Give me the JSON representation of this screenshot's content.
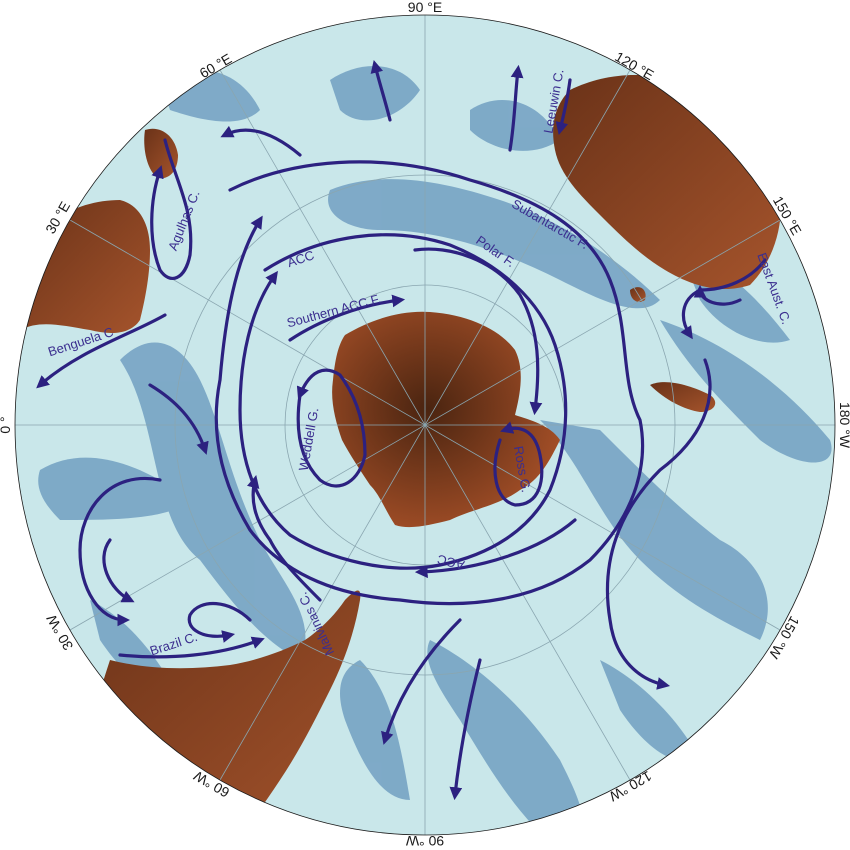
{
  "map": {
    "projection": "south-polar stereographic",
    "colors": {
      "ocean_deep": "#c9e7ea",
      "ocean_shallow": "#7ba7c6",
      "land_dark": "#5a2e16",
      "land_light": "#9b4a26",
      "current_arrow": "#2c2180",
      "grid": "#8aa6b0"
    },
    "longitude_labels": [
      {
        "id": "lon-90e",
        "text": "90 °E"
      },
      {
        "id": "lon-120e",
        "text": "120 °E"
      },
      {
        "id": "lon-150e",
        "text": "150 °E"
      },
      {
        "id": "lon-180",
        "text": "180 °W"
      },
      {
        "id": "lon-150w",
        "text": "150 °W"
      },
      {
        "id": "lon-120w",
        "text": "120 °W"
      },
      {
        "id": "lon-90w",
        "text": "90 °W"
      },
      {
        "id": "lon-60w",
        "text": "60 °W"
      },
      {
        "id": "lon-30w",
        "text": "30 °W"
      },
      {
        "id": "lon-0",
        "text": "0 °"
      },
      {
        "id": "lon-30e",
        "text": "30 °E"
      },
      {
        "id": "lon-60e",
        "text": "60 °E"
      }
    ],
    "current_labels": [
      {
        "id": "leeuwin",
        "text": "Leeuwin C."
      },
      {
        "id": "agulhas",
        "text": "Agulhas C."
      },
      {
        "id": "subantarctic",
        "text": "Subantarctic F."
      },
      {
        "id": "acc-north",
        "text": "ACC"
      },
      {
        "id": "polar-front",
        "text": "Polar F."
      },
      {
        "id": "southern-acc",
        "text": "Southern ACC F."
      },
      {
        "id": "east-aust",
        "text": "East Aust. C."
      },
      {
        "id": "benguela",
        "text": "Benguela C"
      },
      {
        "id": "weddell",
        "text": "Weddell G."
      },
      {
        "id": "ross",
        "text": "Ross G."
      },
      {
        "id": "acc-south",
        "text": "ACC"
      },
      {
        "id": "malvinas",
        "text": "Malvinas C."
      },
      {
        "id": "brazil",
        "text": "Brazil C."
      }
    ]
  }
}
